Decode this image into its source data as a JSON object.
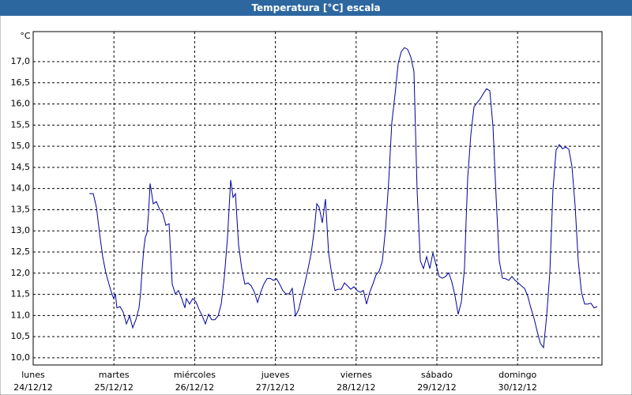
{
  "chart_data": {
    "type": "line",
    "title": "Temperatura [°C] escala",
    "y_unit": "°C",
    "xlim": [
      0,
      7.045
    ],
    "ylim": [
      9.83,
      17.71
    ],
    "xticks": [
      {
        "value": 0,
        "label": "lunes"
      },
      {
        "value": 1,
        "label": "martes"
      },
      {
        "value": 2,
        "label": "miércoles"
      },
      {
        "value": 3,
        "label": "jueves"
      },
      {
        "value": 4,
        "label": "viernes"
      },
      {
        "value": 5,
        "label": "sábado"
      },
      {
        "value": 6,
        "label": "domingo"
      }
    ],
    "xtick_dates": [
      "24/12/12",
      "25/12/12",
      "26/12/12",
      "27/12/12",
      "28/12/12",
      "29/12/12",
      "30/12/12"
    ],
    "yticks": [
      {
        "value": 10,
        "label": "10,0"
      },
      {
        "value": 10.5,
        "label": "10,5"
      },
      {
        "value": 11,
        "label": "11,0"
      },
      {
        "value": 11.5,
        "label": "11,5"
      },
      {
        "value": 12,
        "label": "12,0"
      },
      {
        "value": 12.5,
        "label": "12,5"
      },
      {
        "value": 13,
        "label": "13,0"
      },
      {
        "value": 13.5,
        "label": "13,5"
      },
      {
        "value": 14,
        "label": "14,0"
      },
      {
        "value": 14.5,
        "label": "14,5"
      },
      {
        "value": 15,
        "label": "15,0"
      },
      {
        "value": 15.5,
        "label": "15,5"
      },
      {
        "value": 16,
        "label": "16,0"
      },
      {
        "value": 16.5,
        "label": "16,5"
      },
      {
        "value": 17,
        "label": "17,0"
      }
    ],
    "grid": true,
    "x": [
      0.695,
      0.744,
      0.783,
      0.822,
      0.861,
      0.9,
      0.939,
      0.978,
      0.998,
      1.018,
      1.037,
      1.076,
      1.115,
      1.155,
      1.194,
      1.233,
      1.272,
      1.311,
      1.331,
      1.35,
      1.37,
      1.389,
      1.409,
      1.429,
      1.448,
      1.468,
      1.487,
      1.526,
      1.566,
      1.605,
      1.644,
      1.683,
      1.722,
      1.761,
      1.8,
      1.84,
      1.879,
      1.898,
      1.937,
      1.977,
      2.016,
      2.055,
      2.094,
      2.133,
      2.172,
      2.211,
      2.25,
      2.29,
      2.329,
      2.368,
      2.407,
      2.446,
      2.476,
      2.505,
      2.544,
      2.583,
      2.622,
      2.661,
      2.701,
      2.74,
      2.779,
      2.818,
      2.857,
      2.896,
      2.935,
      2.975,
      3.014,
      3.053,
      3.092,
      3.131,
      3.17,
      3.209,
      3.249,
      3.288,
      3.327,
      3.366,
      3.405,
      3.444,
      3.483,
      3.513,
      3.542,
      3.581,
      3.62,
      3.659,
      3.699,
      3.738,
      3.777,
      3.816,
      3.855,
      3.894,
      3.933,
      3.973,
      4.012,
      4.051,
      4.09,
      4.129,
      4.168,
      4.207,
      4.247,
      4.286,
      4.325,
      4.364,
      4.403,
      4.442,
      4.481,
      4.521,
      4.56,
      4.599,
      4.638,
      4.677,
      4.716,
      4.755,
      4.795,
      4.834,
      4.873,
      4.912,
      4.951,
      4.99,
      5.029,
      5.068,
      5.108,
      5.147,
      5.186,
      5.225,
      5.264,
      5.303,
      5.342,
      5.362,
      5.382,
      5.421,
      5.46,
      5.499,
      5.538,
      5.577,
      5.616,
      5.656,
      5.695,
      5.734,
      5.773,
      5.812,
      5.851,
      5.89,
      5.93,
      5.969,
      6.008,
      6.047,
      6.086,
      6.125,
      6.164,
      6.204,
      6.243,
      6.282,
      6.321,
      6.36,
      6.399,
      6.438,
      6.477,
      6.517,
      6.556,
      6.595,
      6.634,
      6.673,
      6.712,
      6.751,
      6.791,
      6.83,
      6.869,
      6.908,
      6.947,
      6.986
    ],
    "series": [
      {
        "color": "#0000a0",
        "values": [
          13.88,
          13.88,
          13.56,
          12.95,
          12.39,
          12.01,
          11.74,
          11.49,
          11.4,
          11.51,
          11.18,
          11.21,
          11.08,
          10.8,
          10.99,
          10.71,
          10.9,
          11.18,
          11.55,
          12.11,
          12.57,
          12.85,
          12.95,
          13.41,
          14.12,
          13.88,
          13.64,
          13.69,
          13.51,
          13.41,
          13.13,
          13.17,
          11.74,
          11.51,
          11.59,
          11.4,
          11.18,
          11.4,
          11.27,
          11.4,
          11.32,
          11.14,
          10.99,
          10.8,
          11.03,
          10.9,
          10.9,
          10.99,
          11.27,
          11.92,
          12.85,
          14.2,
          13.79,
          13.88,
          12.67,
          12.11,
          11.74,
          11.77,
          11.7,
          11.55,
          11.31,
          11.55,
          11.74,
          11.87,
          11.88,
          11.83,
          11.87,
          11.74,
          11.59,
          11.51,
          11.51,
          11.64,
          10.99,
          11.14,
          11.46,
          11.77,
          12.11,
          12.48,
          13.04,
          13.64,
          13.56,
          13.19,
          13.75,
          12.48,
          11.96,
          11.59,
          11.62,
          11.62,
          11.77,
          11.7,
          11.62,
          11.68,
          11.59,
          11.55,
          11.59,
          11.27,
          11.55,
          11.74,
          11.96,
          12.05,
          12.29,
          13.04,
          14.16,
          15.56,
          16.21,
          16.96,
          17.24,
          17.33,
          17.29,
          17.11,
          16.77,
          13.97,
          12.29,
          12.11,
          12.39,
          12.11,
          12.48,
          12.2,
          11.92,
          11.88,
          11.92,
          12.01,
          11.79,
          11.46,
          11.03,
          11.32,
          12.11,
          13.23,
          14.25,
          15.28,
          15.93,
          16.03,
          16.12,
          16.25,
          16.36,
          16.31,
          15.47,
          13.79,
          12.29,
          11.88,
          11.87,
          11.83,
          11.92,
          11.83,
          11.77,
          11.7,
          11.64,
          11.46,
          11.18,
          10.93,
          10.62,
          10.34,
          10.24,
          10.99,
          12.01,
          13.97,
          14.91,
          15.04,
          14.94,
          14.98,
          14.93,
          14.53,
          13.6,
          12.29,
          11.55,
          11.27,
          11.27,
          11.29,
          11.18,
          11.21
        ]
      }
    ]
  }
}
